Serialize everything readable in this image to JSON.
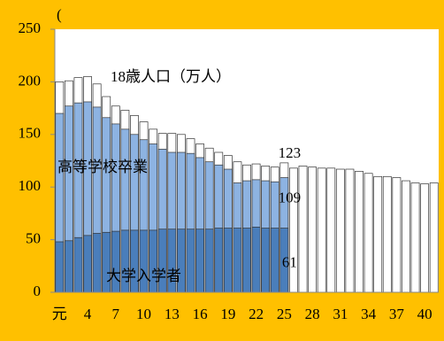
{
  "chart_data": {
    "type": "bar",
    "annotation": "(",
    "categories": [
      "元",
      null,
      null,
      "4",
      null,
      null,
      "7",
      null,
      null,
      "10",
      null,
      null,
      "13",
      null,
      null,
      "16",
      null,
      null,
      "19",
      null,
      null,
      "22",
      null,
      null,
      "25",
      null,
      null,
      "28",
      null,
      null,
      "31",
      null,
      null,
      "34",
      null,
      null,
      "37",
      null,
      null,
      "40",
      null
    ],
    "series": [
      {
        "name": "18歳人口（万人）",
        "color": "#ffffff",
        "values": [
          200,
          201,
          204,
          205,
          198,
          186,
          177,
          173,
          168,
          162,
          155,
          151,
          151,
          150,
          146,
          141,
          137,
          133,
          130,
          124,
          121,
          122,
          120,
          119,
          123,
          118,
          120,
          119,
          118,
          118,
          117,
          117,
          115,
          113,
          110,
          110,
          109,
          106,
          104,
          103,
          104
        ],
        "value_labels": [
          null,
          null,
          null,
          null,
          null,
          null,
          null,
          null,
          null,
          null,
          null,
          null,
          null,
          null,
          null,
          null,
          null,
          null,
          null,
          null,
          null,
          null,
          null,
          null,
          "123",
          null,
          null,
          null,
          null,
          null,
          null,
          null,
          null,
          null,
          null,
          null,
          null,
          null,
          null,
          null,
          null
        ]
      },
      {
        "name": "高等学校卒業",
        "color": "#8db3e2",
        "values": [
          170,
          177,
          180,
          181,
          176,
          166,
          160,
          155,
          150,
          145,
          141,
          136,
          133,
          133,
          132,
          128,
          124,
          121,
          117,
          104,
          106,
          107,
          106,
          105,
          109,
          null,
          null,
          null,
          null,
          null,
          null,
          null,
          null,
          null,
          null,
          null,
          null,
          null,
          null,
          null,
          null
        ],
        "value_labels": [
          null,
          null,
          null,
          null,
          null,
          null,
          null,
          null,
          null,
          null,
          null,
          null,
          null,
          null,
          null,
          null,
          null,
          null,
          null,
          null,
          null,
          null,
          null,
          null,
          "109",
          null,
          null,
          null,
          null,
          null,
          null,
          null,
          null,
          null,
          null,
          null,
          null,
          null,
          null,
          null,
          null
        ]
      },
      {
        "name": "大学入学者",
        "color": "#4a7ebb",
        "values": [
          48,
          49,
          52,
          54,
          56,
          57,
          58,
          59,
          59,
          59,
          59,
          60,
          60,
          60,
          60,
          60,
          60,
          61,
          61,
          61,
          61,
          62,
          61,
          61,
          61,
          null,
          null,
          null,
          null,
          null,
          null,
          null,
          null,
          null,
          null,
          null,
          null,
          null,
          null,
          null,
          null
        ],
        "value_labels": [
          null,
          null,
          null,
          null,
          null,
          null,
          null,
          null,
          null,
          null,
          null,
          null,
          null,
          null,
          null,
          null,
          null,
          null,
          null,
          null,
          null,
          null,
          null,
          null,
          "61",
          null,
          null,
          null,
          null,
          null,
          null,
          null,
          null,
          null,
          null,
          null,
          null,
          null,
          null,
          null,
          null
        ]
      }
    ],
    "ylim": [
      0,
      250
    ],
    "yticks": [
      0,
      50,
      100,
      150,
      200,
      250
    ],
    "grid": false
  }
}
